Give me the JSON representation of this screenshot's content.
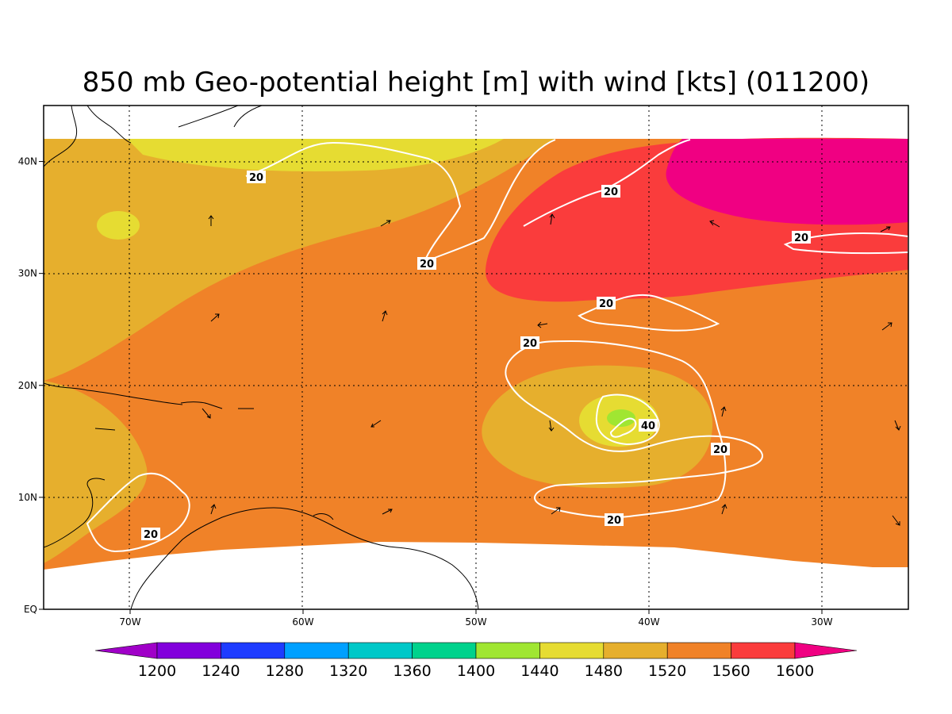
{
  "title": "850 mb Geo-potential height [m] with wind [kts] (011200)",
  "map": {
    "lon_range": [
      -75,
      -25
    ],
    "lat_range": [
      0,
      45
    ],
    "lon_ticks": [
      {
        "value": -70,
        "label": "70W"
      },
      {
        "value": -60,
        "label": "60W"
      },
      {
        "value": -50,
        "label": "50W"
      },
      {
        "value": -40,
        "label": "40W"
      },
      {
        "value": -30,
        "label": "30W"
      }
    ],
    "lat_ticks": [
      {
        "value": 0,
        "label": "EQ"
      },
      {
        "value": 10,
        "label": "10N"
      },
      {
        "value": 20,
        "label": "20N"
      },
      {
        "value": 30,
        "label": "30N"
      },
      {
        "value": 40,
        "label": "40N"
      }
    ],
    "grid": "dotted"
  },
  "colorbar": {
    "levels": [
      "1200",
      "1240",
      "1280",
      "1320",
      "1360",
      "1400",
      "1440",
      "1480",
      "1520",
      "1560",
      "1600"
    ],
    "colors": [
      "#a000c8",
      "#8200dc",
      "#1e3cff",
      "#00a0ff",
      "#00c8c8",
      "#00d28c",
      "#a0e632",
      "#e6dc32",
      "#e6af2d",
      "#f08228",
      "#fa3c3c",
      "#f00082"
    ]
  },
  "wind_contours": [
    {
      "label": "20"
    },
    {
      "label": "20"
    },
    {
      "label": "20"
    },
    {
      "label": "20"
    },
    {
      "label": "20"
    },
    {
      "label": "20"
    },
    {
      "label": "20"
    },
    {
      "label": "20"
    },
    {
      "label": "40"
    }
  ]
}
